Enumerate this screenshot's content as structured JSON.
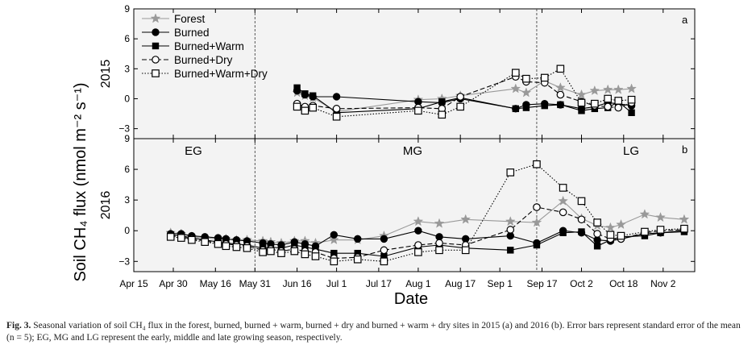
{
  "chart_data": {
    "type": "line",
    "ylabel": "Soil CH₄ flux (nmol m⁻² s⁻¹)",
    "xlabel": "Date",
    "x_ticks": [
      "Apr 15",
      "Apr 30",
      "May 16",
      "May 31",
      "Jun 16",
      "Jul 1",
      "Jul 17",
      "Aug 1",
      "Aug 17",
      "Sep 1",
      "Sep 17",
      "Oct 2",
      "Oct 18",
      "Nov 2"
    ],
    "x_range": [
      "2015-04-15",
      "2015-11-14"
    ],
    "season_boundaries": [
      "2015-05-31",
      "2015-09-15"
    ],
    "season_labels": [
      "EG",
      "MG",
      "LG"
    ],
    "legend": {
      "placement": "top-left",
      "entries": [
        "Forest",
        "Burned",
        "Burned+Warm",
        "Burned+Dry",
        "Burned+Warm+Dry"
      ]
    },
    "panels": [
      {
        "id": "a",
        "row_label": "2015",
        "ylim": [
          -4,
          9
        ],
        "yticks": [
          "-3",
          "0",
          "3",
          "6",
          "9"
        ],
        "series": [
          {
            "name": "Forest",
            "marker": "star",
            "color": "#999999",
            "dash": "",
            "x": [
              "2015-06-16",
              "2015-06-19",
              "2015-06-22",
              "2015-07-01",
              "2015-08-01",
              "2015-08-10",
              "2015-08-17",
              "2015-09-07",
              "2015-09-11",
              "2015-09-18",
              "2015-09-24",
              "2015-10-02",
              "2015-10-07",
              "2015-10-12",
              "2015-10-16",
              "2015-10-21"
            ],
            "y": [
              0.6,
              0.3,
              0.1,
              -1.3,
              -0.1,
              0.0,
              0.3,
              1.0,
              0.6,
              1.8,
              1.1,
              0.4,
              0.8,
              0.9,
              0.9,
              1.0
            ]
          },
          {
            "name": "Burned",
            "marker": "circle-filled",
            "color": "#000000",
            "dash": "",
            "x": [
              "2015-06-16",
              "2015-06-19",
              "2015-06-22",
              "2015-07-01",
              "2015-08-01",
              "2015-08-10",
              "2015-08-17",
              "2015-09-07",
              "2015-09-11",
              "2015-09-18",
              "2015-09-24",
              "2015-10-02",
              "2015-10-07",
              "2015-10-12",
              "2015-10-16",
              "2015-10-21"
            ],
            "y": [
              0.8,
              0.4,
              0.2,
              0.2,
              -0.3,
              -0.4,
              0.0,
              -1.0,
              -0.6,
              -0.5,
              -0.6,
              -1.0,
              -0.8,
              -0.4,
              -0.5,
              -0.7
            ]
          },
          {
            "name": "Burned+Warm",
            "marker": "square-filled",
            "color": "#000000",
            "dash": "",
            "x": [
              "2015-06-16",
              "2015-06-19",
              "2015-06-22",
              "2015-07-01",
              "2015-08-01",
              "2015-08-10",
              "2015-08-17",
              "2015-09-07",
              "2015-09-11",
              "2015-09-18",
              "2015-09-24",
              "2015-10-02",
              "2015-10-07",
              "2015-10-12",
              "2015-10-16",
              "2015-10-21"
            ],
            "y": [
              1.1,
              0.5,
              0.3,
              -1.4,
              -1.0,
              -0.3,
              0.1,
              -1.0,
              -0.9,
              -0.7,
              -0.6,
              -1.2,
              -1.0,
              -0.9,
              -0.3,
              -1.4
            ]
          },
          {
            "name": "Burned+Dry",
            "marker": "circle-open",
            "color": "#000000",
            "dash": "6,3",
            "x": [
              "2015-06-16",
              "2015-06-19",
              "2015-06-22",
              "2015-07-01",
              "2015-08-01",
              "2015-08-10",
              "2015-08-17",
              "2015-09-07",
              "2015-09-11",
              "2015-09-18",
              "2015-09-24",
              "2015-10-02",
              "2015-10-07",
              "2015-10-12",
              "2015-10-16",
              "2015-10-21"
            ],
            "y": [
              -0.5,
              -0.8,
              -0.7,
              -1.0,
              -0.9,
              -1.0,
              0.2,
              2.2,
              1.7,
              1.6,
              0.4,
              -0.3,
              -0.7,
              -0.8,
              -0.9,
              -0.4
            ]
          },
          {
            "name": "Burned+Warm+Dry",
            "marker": "square-open",
            "color": "#000000",
            "dash": "1.5,2",
            "x": [
              "2015-06-16",
              "2015-06-19",
              "2015-06-22",
              "2015-07-01",
              "2015-08-01",
              "2015-08-10",
              "2015-08-17",
              "2015-09-07",
              "2015-09-11",
              "2015-09-18",
              "2015-09-24",
              "2015-10-02",
              "2015-10-07",
              "2015-10-12",
              "2015-10-16",
              "2015-10-21"
            ],
            "y": [
              -0.8,
              -1.2,
              -0.9,
              -1.8,
              -1.2,
              -1.6,
              -0.8,
              2.6,
              2.0,
              2.1,
              3.0,
              -0.4,
              -0.5,
              0.0,
              -0.2,
              -0.1
            ]
          }
        ]
      },
      {
        "id": "b",
        "row_label": "2016",
        "ylim": [
          -4,
          9
        ],
        "yticks": [
          "-3",
          "0",
          "3",
          "6",
          "9"
        ],
        "series": [
          {
            "name": "Forest",
            "marker": "star",
            "color": "#999999",
            "dash": "",
            "x": [
              "2015-04-29",
              "2015-05-03",
              "2015-05-07",
              "2015-05-12",
              "2015-05-17",
              "2015-05-20",
              "2015-05-24",
              "2015-05-28",
              "2015-06-03",
              "2015-06-06",
              "2015-06-10",
              "2015-06-15",
              "2015-06-19",
              "2015-06-23",
              "2015-06-30",
              "2015-07-09",
              "2015-07-19",
              "2015-08-01",
              "2015-08-09",
              "2015-08-19",
              "2015-09-05",
              "2015-09-15",
              "2015-09-25",
              "2015-10-02",
              "2015-10-08",
              "2015-10-13",
              "2015-10-17",
              "2015-10-26",
              "2015-11-01",
              "2015-11-10"
            ],
            "y": [
              -0.2,
              -0.3,
              -0.6,
              -0.7,
              -0.8,
              -0.8,
              -0.9,
              -0.9,
              -1.0,
              -1.1,
              -1.2,
              -1.0,
              -1.0,
              -1.2,
              -0.9,
              -0.9,
              -0.5,
              0.9,
              0.7,
              1.1,
              0.9,
              0.8,
              2.9,
              1.2,
              0.5,
              0.3,
              0.6,
              1.6,
              1.3,
              1.1
            ]
          },
          {
            "name": "Burned",
            "marker": "circle-filled",
            "color": "#000000",
            "dash": "",
            "x": [
              "2015-04-29",
              "2015-05-03",
              "2015-05-07",
              "2015-05-12",
              "2015-05-17",
              "2015-05-20",
              "2015-05-24",
              "2015-05-28",
              "2015-06-03",
              "2015-06-06",
              "2015-06-10",
              "2015-06-15",
              "2015-06-19",
              "2015-06-23",
              "2015-06-30",
              "2015-07-09",
              "2015-07-19",
              "2015-08-01",
              "2015-08-09",
              "2015-08-19",
              "2015-09-05",
              "2015-09-15",
              "2015-09-25",
              "2015-10-02",
              "2015-10-08",
              "2015-10-13",
              "2015-10-17",
              "2015-10-26",
              "2015-11-01",
              "2015-11-10"
            ],
            "y": [
              -0.3,
              -0.3,
              -0.5,
              -0.6,
              -0.7,
              -0.8,
              -0.9,
              -1.0,
              -1.2,
              -1.3,
              -1.4,
              -1.1,
              -1.3,
              -1.5,
              -0.4,
              -0.8,
              -0.8,
              0.0,
              -0.6,
              -0.8,
              -0.5,
              -1.2,
              0.0,
              -0.2,
              -0.9,
              -1.0,
              -0.8,
              -0.3,
              -0.2,
              0.0
            ]
          },
          {
            "name": "Burned+Warm",
            "marker": "square-filled",
            "color": "#000000",
            "dash": "",
            "x": [
              "2015-04-29",
              "2015-05-03",
              "2015-05-07",
              "2015-05-12",
              "2015-05-17",
              "2015-05-20",
              "2015-05-24",
              "2015-05-28",
              "2015-06-03",
              "2015-06-06",
              "2015-06-10",
              "2015-06-15",
              "2015-06-19",
              "2015-06-23",
              "2015-06-30",
              "2015-07-09",
              "2015-07-19",
              "2015-08-01",
              "2015-08-09",
              "2015-08-19",
              "2015-09-05",
              "2015-09-15",
              "2015-09-25",
              "2015-10-02",
              "2015-10-08",
              "2015-10-13",
              "2015-10-17",
              "2015-10-26",
              "2015-11-01",
              "2015-11-10"
            ],
            "y": [
              -0.4,
              -0.5,
              -0.7,
              -0.9,
              -1.1,
              -1.2,
              -1.3,
              -1.4,
              -1.7,
              -1.6,
              -1.7,
              -1.4,
              -1.6,
              -1.8,
              -2.2,
              -2.2,
              -2.5,
              -1.6,
              -1.4,
              -1.7,
              -1.9,
              -1.4,
              -0.2,
              -0.1,
              -1.5,
              -0.9,
              -0.6,
              -0.5,
              -0.2,
              -0.1
            ]
          },
          {
            "name": "Burned+Dry",
            "marker": "circle-open",
            "color": "#000000",
            "dash": "6,3",
            "x": [
              "2015-04-29",
              "2015-05-03",
              "2015-05-07",
              "2015-05-12",
              "2015-05-17",
              "2015-05-20",
              "2015-05-24",
              "2015-05-28",
              "2015-06-03",
              "2015-06-06",
              "2015-06-10",
              "2015-06-15",
              "2015-06-19",
              "2015-06-23",
              "2015-06-30",
              "2015-07-09",
              "2015-07-19",
              "2015-08-01",
              "2015-08-09",
              "2015-08-19",
              "2015-09-05",
              "2015-09-15",
              "2015-09-25",
              "2015-10-02",
              "2015-10-08",
              "2015-10-13",
              "2015-10-17",
              "2015-10-26",
              "2015-11-01",
              "2015-11-10"
            ],
            "y": [
              -0.5,
              -0.6,
              -0.8,
              -1.0,
              -1.2,
              -1.3,
              -1.4,
              -1.5,
              -1.9,
              -1.8,
              -2.0,
              -1.8,
              -2.0,
              -2.1,
              -2.7,
              -2.6,
              -1.9,
              -1.4,
              -1.2,
              -1.4,
              0.1,
              2.3,
              1.8,
              1.1,
              -0.3,
              -0.8,
              -0.8,
              -0.2,
              0.0,
              0.1
            ]
          },
          {
            "name": "Burned+Warm+Dry",
            "marker": "square-open",
            "color": "#000000",
            "dash": "1.5,2",
            "x": [
              "2015-04-29",
              "2015-05-03",
              "2015-05-07",
              "2015-05-12",
              "2015-05-17",
              "2015-05-20",
              "2015-05-24",
              "2015-05-28",
              "2015-06-03",
              "2015-06-06",
              "2015-06-10",
              "2015-06-15",
              "2015-06-19",
              "2015-06-23",
              "2015-06-30",
              "2015-07-09",
              "2015-07-19",
              "2015-08-01",
              "2015-08-09",
              "2015-08-19",
              "2015-09-05",
              "2015-09-15",
              "2015-09-25",
              "2015-10-02",
              "2015-10-08",
              "2015-10-13",
              "2015-10-17",
              "2015-10-26",
              "2015-11-01",
              "2015-11-10"
            ],
            "y": [
              -0.6,
              -0.7,
              -0.9,
              -1.1,
              -1.3,
              -1.5,
              -1.6,
              -1.7,
              -2.1,
              -2.0,
              -2.2,
              -2.0,
              -2.3,
              -2.5,
              -3.0,
              -2.8,
              -3.0,
              -2.1,
              -1.9,
              -1.9,
              5.7,
              6.5,
              4.2,
              2.9,
              0.8,
              -0.4,
              -0.5,
              -0.1,
              0.1,
              0.2
            ]
          }
        ]
      }
    ]
  },
  "caption": {
    "label": "Fig. 3.",
    "text": "Seasonal variation of soil CH₄ flux in the forest, burned, burned + warm, burned + dry and burned + warm + dry sites in 2015 (a) and 2016 (b). Error bars represent standard error of the mean (n = 5); EG, MG and LG represent the early, middle and late growing season, respectively."
  }
}
